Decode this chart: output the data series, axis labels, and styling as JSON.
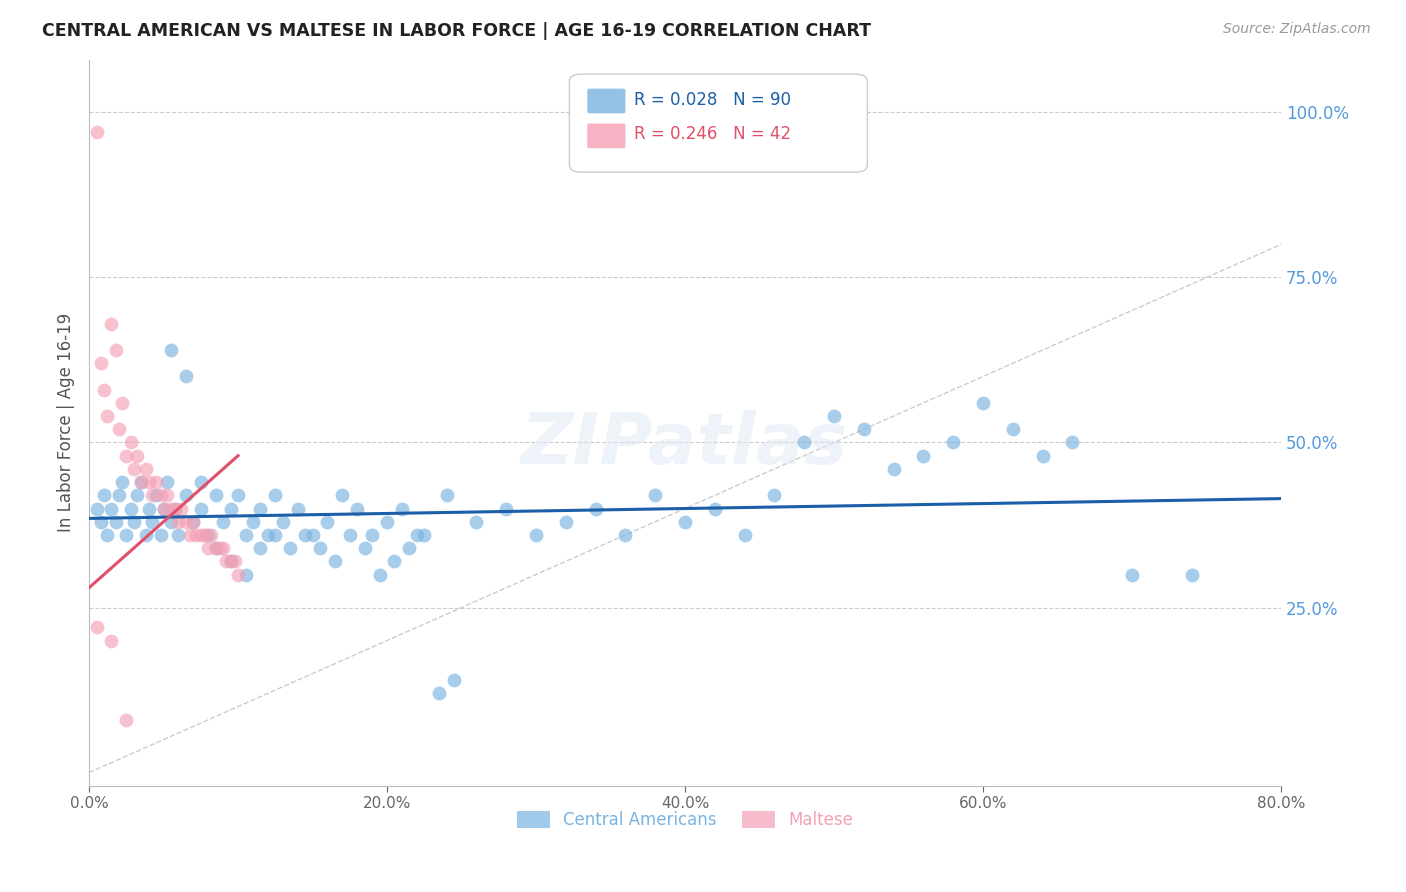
{
  "title": "CENTRAL AMERICAN VS MALTESE IN LABOR FORCE | AGE 16-19 CORRELATION CHART",
  "source": "Source: ZipAtlas.com",
  "ylabel": "In Labor Force | Age 16-19",
  "xlabel_ticks": [
    "0.0%",
    "20.0%",
    "40.0%",
    "60.0%",
    "80.0%"
  ],
  "xlabel_vals": [
    0.0,
    0.2,
    0.4,
    0.6,
    0.8
  ],
  "ylabel_ticks_right": [
    "100.0%",
    "75.0%",
    "50.0%",
    "25.0%"
  ],
  "ylabel_vals_right": [
    1.0,
    0.75,
    0.5,
    0.25
  ],
  "xlim": [
    0.0,
    0.8
  ],
  "ylim": [
    -0.02,
    1.08
  ],
  "blue_R": 0.028,
  "blue_N": 90,
  "pink_R": 0.246,
  "pink_N": 42,
  "blue_color": "#7ab3e0",
  "pink_color": "#f4a0b5",
  "trendline_blue_color": "#1a5fa8",
  "trendline_pink_color": "#e0506a",
  "diagonal_color": "#cccccc",
  "grid_color": "#cccccc",
  "axis_color": "#bbbbbb",
  "right_label_color": "#5599dd",
  "blue_scatter_x": [
    0.005,
    0.008,
    0.01,
    0.012,
    0.015,
    0.018,
    0.02,
    0.022,
    0.025,
    0.028,
    0.03,
    0.032,
    0.035,
    0.038,
    0.04,
    0.042,
    0.045,
    0.048,
    0.05,
    0.052,
    0.055,
    0.058,
    0.06,
    0.065,
    0.07,
    0.075,
    0.08,
    0.085,
    0.09,
    0.095,
    0.1,
    0.105,
    0.11,
    0.115,
    0.12,
    0.125,
    0.13,
    0.14,
    0.15,
    0.16,
    0.17,
    0.18,
    0.19,
    0.2,
    0.21,
    0.22,
    0.24,
    0.26,
    0.28,
    0.3,
    0.32,
    0.34,
    0.36,
    0.38,
    0.4,
    0.42,
    0.44,
    0.46,
    0.48,
    0.5,
    0.52,
    0.54,
    0.56,
    0.58,
    0.6,
    0.62,
    0.64,
    0.66,
    0.7,
    0.74,
    0.055,
    0.065,
    0.075,
    0.085,
    0.095,
    0.105,
    0.115,
    0.125,
    0.135,
    0.145,
    0.155,
    0.165,
    0.175,
    0.185,
    0.195,
    0.205,
    0.215,
    0.225,
    0.235,
    0.245
  ],
  "blue_scatter_y": [
    0.4,
    0.38,
    0.42,
    0.36,
    0.4,
    0.38,
    0.42,
    0.44,
    0.36,
    0.4,
    0.38,
    0.42,
    0.44,
    0.36,
    0.4,
    0.38,
    0.42,
    0.36,
    0.4,
    0.44,
    0.38,
    0.4,
    0.36,
    0.42,
    0.38,
    0.4,
    0.36,
    0.42,
    0.38,
    0.4,
    0.42,
    0.36,
    0.38,
    0.4,
    0.36,
    0.42,
    0.38,
    0.4,
    0.36,
    0.38,
    0.42,
    0.4,
    0.36,
    0.38,
    0.4,
    0.36,
    0.42,
    0.38,
    0.4,
    0.36,
    0.38,
    0.4,
    0.36,
    0.42,
    0.38,
    0.4,
    0.36,
    0.42,
    0.5,
    0.54,
    0.52,
    0.46,
    0.48,
    0.5,
    0.56,
    0.52,
    0.48,
    0.5,
    0.3,
    0.3,
    0.64,
    0.6,
    0.44,
    0.34,
    0.32,
    0.3,
    0.34,
    0.36,
    0.34,
    0.36,
    0.34,
    0.32,
    0.36,
    0.34,
    0.3,
    0.32,
    0.34,
    0.36,
    0.12,
    0.14
  ],
  "pink_scatter_x": [
    0.005,
    0.008,
    0.01,
    0.012,
    0.015,
    0.018,
    0.02,
    0.022,
    0.025,
    0.028,
    0.03,
    0.032,
    0.035,
    0.038,
    0.04,
    0.042,
    0.045,
    0.048,
    0.05,
    0.052,
    0.055,
    0.058,
    0.06,
    0.062,
    0.065,
    0.068,
    0.07,
    0.072,
    0.075,
    0.078,
    0.08,
    0.082,
    0.085,
    0.088,
    0.09,
    0.092,
    0.095,
    0.098,
    0.1,
    0.005,
    0.015,
    0.025
  ],
  "pink_scatter_y": [
    0.97,
    0.62,
    0.58,
    0.54,
    0.68,
    0.64,
    0.52,
    0.56,
    0.48,
    0.5,
    0.46,
    0.48,
    0.44,
    0.46,
    0.44,
    0.42,
    0.44,
    0.42,
    0.4,
    0.42,
    0.4,
    0.4,
    0.38,
    0.4,
    0.38,
    0.36,
    0.38,
    0.36,
    0.36,
    0.36,
    0.34,
    0.36,
    0.34,
    0.34,
    0.34,
    0.32,
    0.32,
    0.32,
    0.3,
    0.22,
    0.2,
    0.08
  ],
  "blue_trendline_x": [
    0.0,
    0.8
  ],
  "blue_trendline_y": [
    0.385,
    0.415
  ],
  "pink_trendline_x": [
    0.0,
    0.1
  ],
  "pink_trendline_y": [
    0.28,
    0.48
  ]
}
